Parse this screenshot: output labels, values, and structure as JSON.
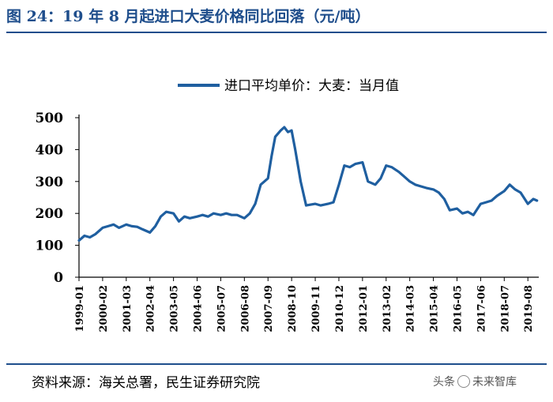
{
  "header": {
    "title": "图 24：19 年 8 月起进口大麦价格同比回落（元/吨）"
  },
  "footer": {
    "source": "资料来源：海关总署，民生证券研究院",
    "watermark_left": "头条",
    "watermark_right": "未来智库"
  },
  "colors": {
    "accent": "#1f4e8c",
    "series": "#1f5fa0"
  },
  "chart_data": {
    "type": "line",
    "title": "",
    "xlabel": "",
    "ylabel": "",
    "ylim": [
      0,
      500
    ],
    "y_ticks": [
      "0",
      "100",
      "200",
      "300",
      "400",
      "500"
    ],
    "x_ticks": [
      "1999-01",
      "2000-02",
      "2001-03",
      "2002-04",
      "2003-05",
      "2004-06",
      "2005-07",
      "2006-08",
      "2007-09",
      "2008-10",
      "2009-11",
      "2010-12",
      "2012-01",
      "2013-02",
      "2014-03",
      "2015-04",
      "2016-05",
      "2017-06",
      "2018-07",
      "2019-08"
    ],
    "legend_position": "top",
    "series": [
      {
        "name": "进口平均单价：大麦：当月值",
        "x": [
          "1999-01",
          "1999-04",
          "1999-07",
          "1999-10",
          "2000-02",
          "2000-05",
          "2000-08",
          "2000-11",
          "2001-03",
          "2001-06",
          "2001-09",
          "2001-12",
          "2002-04",
          "2002-07",
          "2002-10",
          "2003-01",
          "2003-05",
          "2003-08",
          "2003-11",
          "2004-02",
          "2004-06",
          "2004-09",
          "2004-12",
          "2005-03",
          "2005-07",
          "2005-10",
          "2006-01",
          "2006-04",
          "2006-08",
          "2006-11",
          "2007-02",
          "2007-05",
          "2007-09",
          "2007-11",
          "2008-01",
          "2008-04",
          "2008-06",
          "2008-08",
          "2008-10",
          "2008-12",
          "2009-03",
          "2009-06",
          "2009-11",
          "2010-02",
          "2010-06",
          "2010-09",
          "2010-12",
          "2011-03",
          "2011-06",
          "2011-09",
          "2012-01",
          "2012-04",
          "2012-08",
          "2012-11",
          "2013-02",
          "2013-05",
          "2013-09",
          "2013-12",
          "2014-03",
          "2014-06",
          "2014-09",
          "2014-12",
          "2015-04",
          "2015-07",
          "2015-10",
          "2016-01",
          "2016-05",
          "2016-08",
          "2016-11",
          "2017-02",
          "2017-06",
          "2017-09",
          "2017-12",
          "2018-03",
          "2018-07",
          "2018-10",
          "2019-01",
          "2019-04",
          "2019-08",
          "2019-11",
          "2020-01"
        ],
        "values": [
          115,
          130,
          125,
          135,
          155,
          160,
          165,
          155,
          165,
          160,
          158,
          150,
          140,
          160,
          190,
          205,
          200,
          175,
          190,
          185,
          190,
          195,
          190,
          200,
          195,
          200,
          195,
          195,
          185,
          200,
          230,
          290,
          310,
          380,
          440,
          460,
          470,
          455,
          460,
          400,
          300,
          225,
          230,
          225,
          230,
          235,
          290,
          350,
          345,
          355,
          360,
          300,
          290,
          310,
          350,
          345,
          330,
          315,
          300,
          290,
          285,
          280,
          275,
          265,
          245,
          210,
          215,
          200,
          205,
          195,
          230,
          235,
          240,
          255,
          270,
          290,
          275,
          265,
          230,
          245,
          240
        ]
      }
    ]
  }
}
